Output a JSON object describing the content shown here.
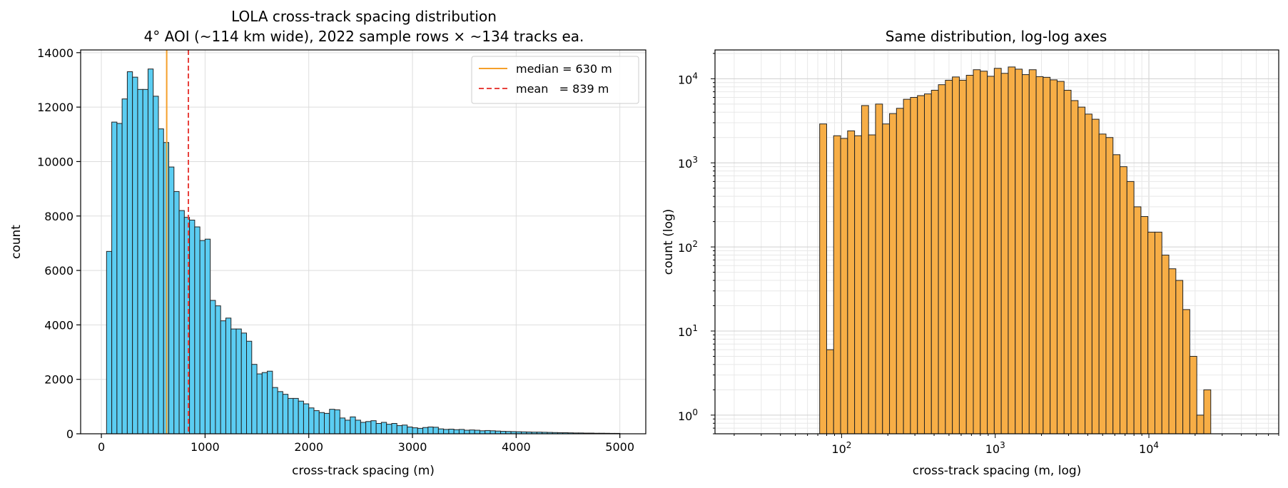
{
  "colors": {
    "hist_left": "#5bcdf2",
    "hist_right": "#f7ae46",
    "edge": "#222222",
    "median": "#f5a02a",
    "mean": "#e8413c",
    "grid": "#dddddd"
  },
  "chart_data": [
    {
      "type": "bar",
      "subtype": "histogram",
      "title_line1": "LOLA cross-track spacing distribution",
      "title_line2": "4° AOI (~114 km wide), 2022 sample rows × ~134 tracks ea.",
      "xlabel": "cross-track spacing (m)",
      "ylabel": "count",
      "xlim": [
        -200,
        5250
      ],
      "ylim": [
        0,
        14100
      ],
      "xticks": [
        0,
        1000,
        2000,
        3000,
        4000,
        5000
      ],
      "xtick_labels": [
        "0",
        "1000",
        "2000",
        "3000",
        "4000",
        "5000"
      ],
      "yticks": [
        0,
        2000,
        4000,
        6000,
        8000,
        10000,
        12000,
        14000
      ],
      "ytick_labels": [
        "0",
        "2000",
        "4000",
        "6000",
        "8000",
        "10000",
        "12000",
        "14000"
      ],
      "grid": true,
      "legend_position": "top-right",
      "bins_start": 50,
      "bin_width": 50,
      "values": [
        6700,
        11450,
        11400,
        12300,
        13300,
        13100,
        12650,
        12650,
        13400,
        12400,
        11200,
        10700,
        9800,
        8900,
        8200,
        7950,
        7850,
        7600,
        7100,
        7150,
        4900,
        4700,
        4150,
        4250,
        3850,
        3850,
        3700,
        3400,
        2550,
        2200,
        2250,
        2300,
        1700,
        1550,
        1450,
        1300,
        1300,
        1200,
        1100,
        950,
        850,
        780,
        750,
        900,
        880,
        580,
        500,
        620,
        500,
        420,
        450,
        480,
        380,
        420,
        350,
        380,
        300,
        320,
        250,
        220,
        200,
        230,
        250,
        240,
        180,
        160,
        170,
        150,
        160,
        130,
        140,
        130,
        110,
        120,
        110,
        100,
        90,
        85,
        80,
        75,
        70,
        65,
        60,
        60,
        55,
        50,
        45,
        40,
        40,
        35,
        30,
        30,
        25,
        25,
        20,
        20,
        18,
        15,
        15
      ],
      "lines": [
        {
          "name": "median = 630 m",
          "x": 630,
          "style": "solid"
        },
        {
          "name": "mean   = 839 m",
          "x": 839,
          "style": "dashed"
        }
      ]
    },
    {
      "type": "bar",
      "subtype": "histogram",
      "title": "Same distribution, log-log axes",
      "xlabel": "cross-track spacing (m, log)",
      "ylabel": "count (log)",
      "xscale": "log",
      "yscale": "log",
      "xlim": [
        15,
        70000
      ],
      "ylim": [
        0.6,
        22000
      ],
      "xticks": [
        100,
        1000,
        10000
      ],
      "yticks": [
        1,
        10,
        100,
        1000,
        10000
      ],
      "tick_base": "10",
      "xtick_exponents": [
        "2",
        "3",
        "4"
      ],
      "ytick_exponents": [
        "0",
        "1",
        "2",
        "3",
        "4"
      ],
      "grid": true,
      "bins_start": 72,
      "bins_per_decade": 22,
      "values": [
        2900,
        6,
        2100,
        1950,
        2400,
        2100,
        4800,
        2150,
        5000,
        2900,
        3850,
        4450,
        5700,
        6000,
        6300,
        6600,
        7300,
        8500,
        9600,
        10500,
        9600,
        11000,
        12800,
        12300,
        10700,
        13300,
        11600,
        13800,
        13000,
        11200,
        12800,
        10600,
        10400,
        9700,
        9300,
        7300,
        5500,
        4600,
        3800,
        3300,
        2200,
        2000,
        1250,
        900,
        600,
        300,
        230,
        150,
        150,
        80,
        55,
        40,
        18,
        5,
        1,
        2
      ]
    }
  ]
}
